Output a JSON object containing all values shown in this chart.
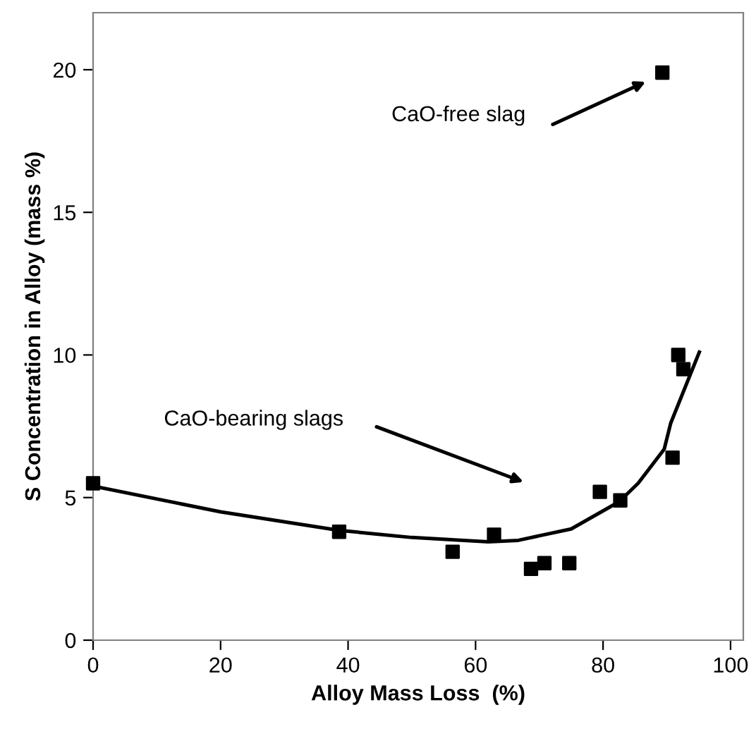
{
  "chart_data": {
    "type": "scatter",
    "xlabel": "Alloy Mass Loss  (%)",
    "ylabel": "S Concentration in Alloy (mass %)",
    "xlim": [
      0,
      102
    ],
    "xticks": [
      0,
      20,
      40,
      60,
      80,
      100
    ],
    "ylim": [
      0,
      22
    ],
    "yticks": [
      0,
      5,
      10,
      15,
      20
    ],
    "grid": false,
    "marker": "square",
    "series": [
      {
        "color": "#000000",
        "x": [
          0,
          38.6,
          56.4,
          62.9,
          68.7,
          70.8,
          74.7,
          79.5,
          82.7,
          90.9,
          91.8,
          92.6,
          89.3
        ],
        "values": [
          5.5,
          3.8,
          3.1,
          3.7,
          2.5,
          2.7,
          2.7,
          5.2,
          4.9,
          6.4,
          10.0,
          9.5,
          19.9
        ]
      },
      {
        "type": "line",
        "color": "#000000",
        "marker": "none",
        "line_style": "solid",
        "x": [
          0,
          20,
          38.6,
          50,
          62,
          66.7,
          75,
          82.5,
          85.5,
          89.6,
          90.6,
          95.1
        ],
        "values": [
          5.4,
          4.5,
          3.85,
          3.6,
          3.45,
          3.5,
          3.9,
          4.85,
          5.5,
          6.7,
          7.6,
          10.1
        ]
      }
    ],
    "annotations": [
      "CaO-free slag",
      "CaO-bearing slags"
    ]
  }
}
